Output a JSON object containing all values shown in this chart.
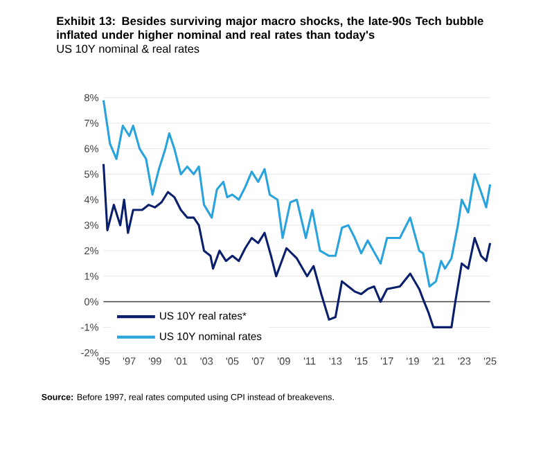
{
  "chart_data": {
    "type": "line",
    "title": "Exhibit 13: Besides surviving major macro shocks, the late-90s Tech bubble inflated under higher nominal and real rates than today's",
    "subtitle": "US 10Y nominal & real rates",
    "annotations": [
      "**Source:** Before 1997, real rates computed using CPI instead of breakevens."
    ],
    "xlim": [
      1995,
      2025
    ],
    "xticks": [
      {
        "value": 1995,
        "label": "'95"
      },
      {
        "value": 1997,
        "label": "'97"
      },
      {
        "value": 1999,
        "label": "'99"
      },
      {
        "value": 2001,
        "label": "'01"
      },
      {
        "value": 2003,
        "label": "'03"
      },
      {
        "value": 2005,
        "label": "'05"
      },
      {
        "value": 2007,
        "label": "'07"
      },
      {
        "value": 2009,
        "label": "'09"
      },
      {
        "value": 2011,
        "label": "'11"
      },
      {
        "value": 2013,
        "label": "'13"
      },
      {
        "value": 2015,
        "label": "'15"
      },
      {
        "value": 2017,
        "label": "'17"
      },
      {
        "value": 2019,
        "label": "'19"
      },
      {
        "value": 2021,
        "label": "'21"
      },
      {
        "value": 2023,
        "label": "'23"
      },
      {
        "value": 2025,
        "label": "'25"
      }
    ],
    "ylim": [
      -2,
      8
    ],
    "yticks": [
      {
        "value": -2,
        "label": "-2%"
      },
      {
        "value": -1,
        "label": "-1%"
      },
      {
        "value": 0,
        "label": "0%"
      },
      {
        "value": 1,
        "label": "1%"
      },
      {
        "value": 2,
        "label": "2%"
      },
      {
        "value": 3,
        "label": "3%"
      },
      {
        "value": 4,
        "label": "4%"
      },
      {
        "value": 5,
        "label": "5%"
      },
      {
        "value": 6,
        "label": "6%"
      },
      {
        "value": 7,
        "label": "7%"
      },
      {
        "value": 8,
        "label": "8%"
      }
    ],
    "grid": "y",
    "legend": "bottom left",
    "marker": "none",
    "line_style": "solid",
    "ref_lines": [
      {
        "axis": "y",
        "value": 0,
        "color": "#404040"
      }
    ],
    "series": [
      {
        "name": "US 10Y real rates*",
        "color": "#0a1f6b",
        "x": [
          1995.0,
          1995.3,
          1995.8,
          1996.3,
          1996.6,
          1996.9,
          1997.3,
          1998.0,
          1998.5,
          1999.0,
          1999.5,
          2000.0,
          2000.5,
          2001.0,
          2001.5,
          2002.0,
          2002.4,
          2002.8,
          2003.3,
          2003.5,
          2004.0,
          2004.5,
          2005.0,
          2005.5,
          2006.0,
          2006.5,
          2007.0,
          2007.5,
          2008.0,
          2008.4,
          2009.2,
          2010.0,
          2010.8,
          2011.3,
          2011.9,
          2012.5,
          2013.0,
          2013.5,
          2014.0,
          2014.5,
          2015.0,
          2015.5,
          2016.0,
          2016.5,
          2017.0,
          2018.0,
          2018.8,
          2019.5,
          2019.8,
          2020.2,
          2020.6,
          2021.0,
          2021.5,
          2022.0,
          2022.3,
          2022.8,
          2023.3,
          2023.8,
          2024.3,
          2024.7,
          2025.0
        ],
        "values": [
          5.4,
          2.8,
          3.8,
          3.0,
          4.0,
          2.7,
          3.6,
          3.6,
          3.8,
          3.7,
          3.9,
          4.3,
          4.1,
          3.6,
          3.3,
          3.3,
          3.0,
          2.0,
          1.8,
          1.3,
          2.0,
          1.6,
          1.8,
          1.6,
          2.1,
          2.5,
          2.3,
          2.7,
          1.8,
          1.0,
          2.1,
          1.7,
          1.0,
          1.4,
          0.3,
          -0.7,
          -0.6,
          0.8,
          0.6,
          0.4,
          0.3,
          0.5,
          0.6,
          0.0,
          0.5,
          0.6,
          1.1,
          0.5,
          0.1,
          -0.4,
          -1.0,
          -1.0,
          -1.0,
          -1.0,
          0.0,
          1.5,
          1.3,
          2.5,
          1.8,
          1.6,
          2.3
        ]
      },
      {
        "name": "US 10Y nominal rates",
        "color": "#2aa3dc",
        "x": [
          1995.0,
          1995.5,
          1996.0,
          1996.5,
          1997.0,
          1997.3,
          1997.8,
          1998.3,
          1998.8,
          1999.3,
          1999.8,
          2000.1,
          2000.5,
          2001.0,
          2001.5,
          2002.0,
          2002.4,
          2002.8,
          2003.4,
          2003.8,
          2004.3,
          2004.6,
          2005.0,
          2005.5,
          2006.0,
          2006.5,
          2007.0,
          2007.5,
          2007.9,
          2008.5,
          2008.9,
          2009.5,
          2010.0,
          2010.7,
          2011.2,
          2011.8,
          2012.5,
          2013.0,
          2013.5,
          2014.0,
          2014.5,
          2015.0,
          2015.5,
          2016.5,
          2017.0,
          2018.0,
          2018.8,
          2019.5,
          2019.8,
          2020.3,
          2020.8,
          2021.2,
          2021.5,
          2022.0,
          2022.5,
          2022.8,
          2023.3,
          2023.8,
          2024.3,
          2024.7,
          2025.0
        ],
        "values": [
          7.9,
          6.2,
          5.6,
          6.9,
          6.5,
          6.9,
          6.0,
          5.6,
          4.2,
          5.2,
          6.0,
          6.6,
          6.0,
          5.0,
          5.3,
          5.0,
          5.3,
          3.8,
          3.3,
          4.4,
          4.7,
          4.1,
          4.2,
          4.0,
          4.5,
          5.1,
          4.7,
          5.2,
          4.2,
          4.0,
          2.5,
          3.9,
          4.0,
          2.5,
          3.6,
          2.0,
          1.8,
          1.8,
          2.9,
          3.0,
          2.5,
          1.9,
          2.4,
          1.5,
          2.5,
          2.5,
          3.3,
          2.0,
          1.9,
          0.6,
          0.8,
          1.6,
          1.3,
          1.7,
          3.0,
          4.0,
          3.5,
          5.0,
          4.3,
          3.7,
          4.6
        ]
      }
    ]
  }
}
